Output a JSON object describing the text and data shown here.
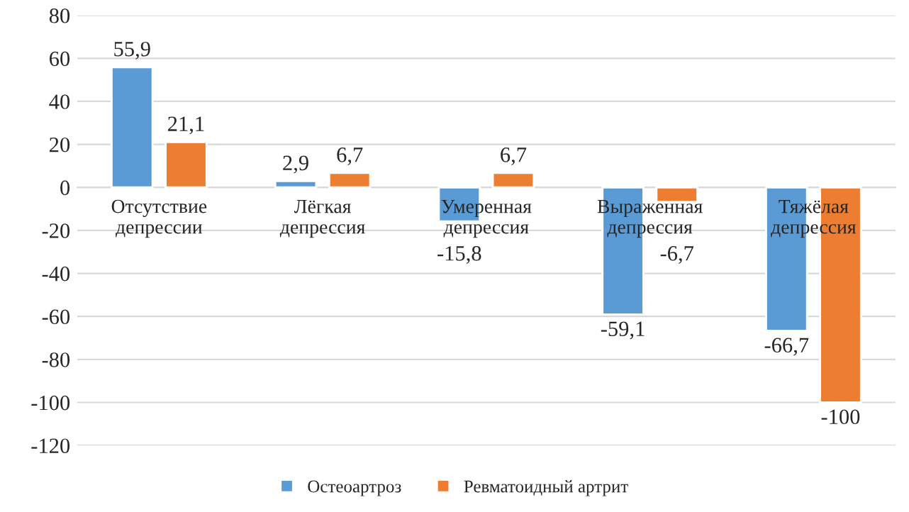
{
  "chart_data": {
    "type": "bar",
    "categories": [
      "Отсутствие\nдепрессии",
      "Лёгкая\nдепрессия",
      "Умеренная\nдепрессия",
      "Выраженная\nдепрессия",
      "Тяжёлая\nдепрессия"
    ],
    "series": [
      {
        "name": "Остеоартроз",
        "color": "#5b9bd5",
        "values": [
          55.9,
          2.9,
          -15.8,
          -59.1,
          -66.7
        ],
        "value_labels": [
          "55,9",
          "2,9",
          "-15,8",
          "-59,1",
          "-66,7"
        ]
      },
      {
        "name": "Ревматоидный артрит",
        "color": "#ed7d31",
        "values": [
          21.1,
          6.7,
          6.7,
          -6.7,
          -100
        ],
        "value_labels": [
          "21,1",
          "6,7",
          "6,7",
          "-6,7",
          "-100"
        ]
      }
    ],
    "ylim": [
      -120,
      80
    ],
    "yticks": [
      -120,
      -100,
      -80,
      -60,
      -40,
      -20,
      0,
      20,
      40,
      60,
      80
    ],
    "grid": "y",
    "legend": "bottom"
  }
}
